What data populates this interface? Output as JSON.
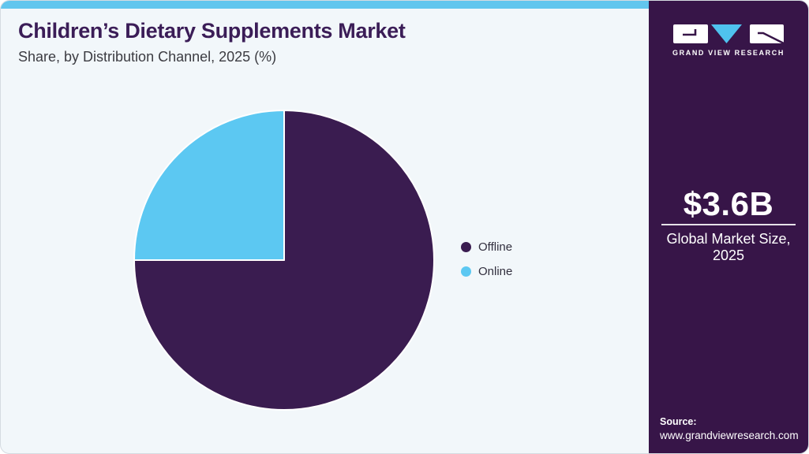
{
  "header": {
    "title": "Children’s Dietary Supplements Market",
    "subtitle": "Share, by Distribution Channel, 2025 (%)"
  },
  "chart_data": {
    "type": "pie",
    "title": "Children’s Dietary Supplements Market Share, by Distribution Channel, 2025 (%)",
    "categories": [
      "Offline",
      "Online"
    ],
    "values": [
      75,
      25
    ],
    "unit": "%",
    "colors": [
      "#3A1C50",
      "#5CC8F2"
    ],
    "start_angle": "12-oclock",
    "direction": "clockwise",
    "legend_position": "right",
    "data_labels": false
  },
  "sidebar": {
    "brand": "GRAND VIEW RESEARCH",
    "stat": {
      "value": "$3.6B",
      "label_line1": "Global Market Size,",
      "label_line2": "2025"
    },
    "source": {
      "label": "Source:",
      "url": "www.grandviewresearch.com"
    }
  },
  "colors": {
    "accent_bar_blue": "#62C6EE",
    "sidebar_purple": "#371548",
    "pie_offline_purple": "#3A1C50",
    "pie_online_blue": "#5CC8F2",
    "logo_triangle_blue": "#4FC2EE",
    "title_purple": "#3B1D57",
    "card_background": "#F2F7FA"
  }
}
